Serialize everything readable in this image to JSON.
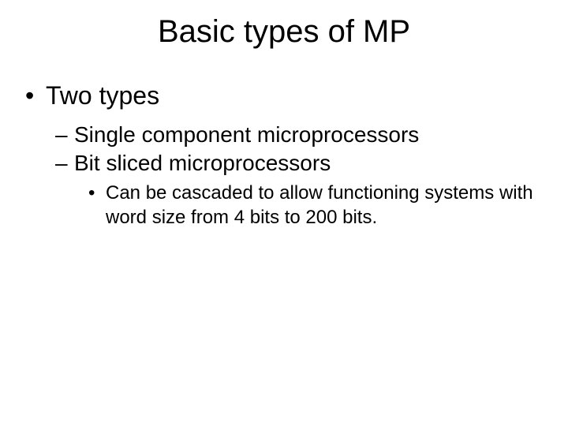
{
  "slide": {
    "title": "Basic types of MP",
    "title_fontsize": 40,
    "background_color": "#ffffff",
    "text_color": "#000000",
    "font_family": "Arial",
    "level1_fontsize": 32,
    "level2_fontsize": 28,
    "level3_fontsize": 24,
    "bullets": {
      "level1_marker": "•",
      "level2_marker": "–",
      "level3_marker": "•"
    },
    "items": [
      {
        "text": "Two types",
        "children": [
          {
            "text": "Single component microprocessors"
          },
          {
            "text": "Bit sliced microprocessors",
            "children": [
              {
                "text": "Can be cascaded to allow functioning systems with word size from 4 bits to 200 bits."
              }
            ]
          }
        ]
      }
    ]
  }
}
